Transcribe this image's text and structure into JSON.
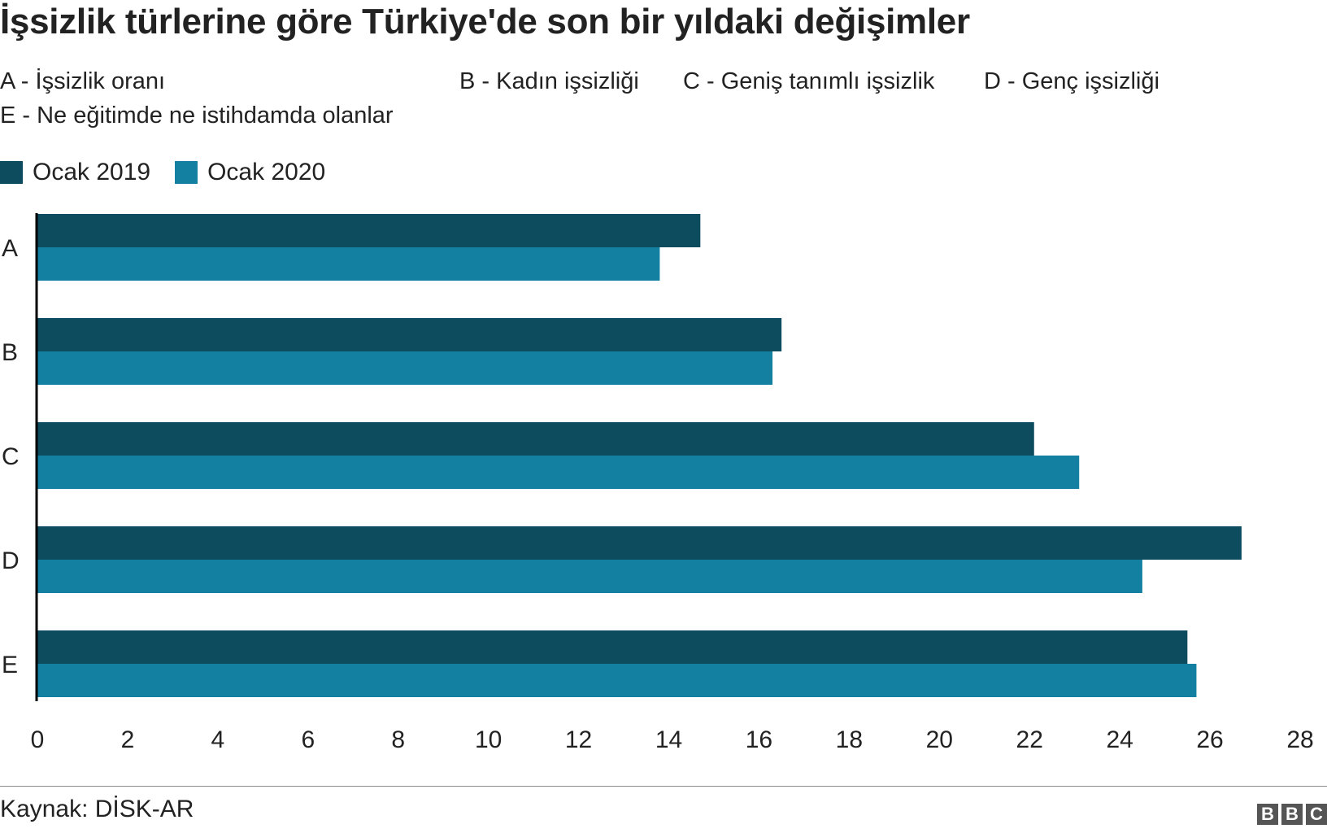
{
  "title": "İşsizlik türlerine göre Türkiye'de son bir yıldaki değişimler",
  "key_items": [
    "A - İşsizlik oranı",
    "B - Kadın işsizliği",
    "C - Geniş tanımlı işsizlik",
    "D - Genç işsizliği",
    "E - Ne eğitimde ne istihdamda olanlar"
  ],
  "source": "Kaynak: DİSK-AR",
  "logo": [
    "B",
    "B",
    "C"
  ],
  "colors": {
    "series_2019": "#0c4c5e",
    "series_2020": "#1380a1"
  },
  "chart_data": {
    "type": "bar",
    "orientation": "horizontal",
    "categories": [
      "A",
      "B",
      "C",
      "D",
      "E"
    ],
    "series": [
      {
        "name": "Ocak 2019",
        "values": [
          14.7,
          16.5,
          22.1,
          26.7,
          25.5
        ]
      },
      {
        "name": "Ocak 2020",
        "values": [
          13.8,
          16.3,
          23.1,
          24.5,
          25.7
        ]
      }
    ],
    "xlim": [
      0,
      28
    ],
    "xticks": [
      "0",
      "2",
      "4",
      "6",
      "8",
      "10",
      "12",
      "14",
      "16",
      "18",
      "20",
      "22",
      "24",
      "26",
      "28"
    ],
    "grid": false,
    "legend_position": "top-left"
  }
}
